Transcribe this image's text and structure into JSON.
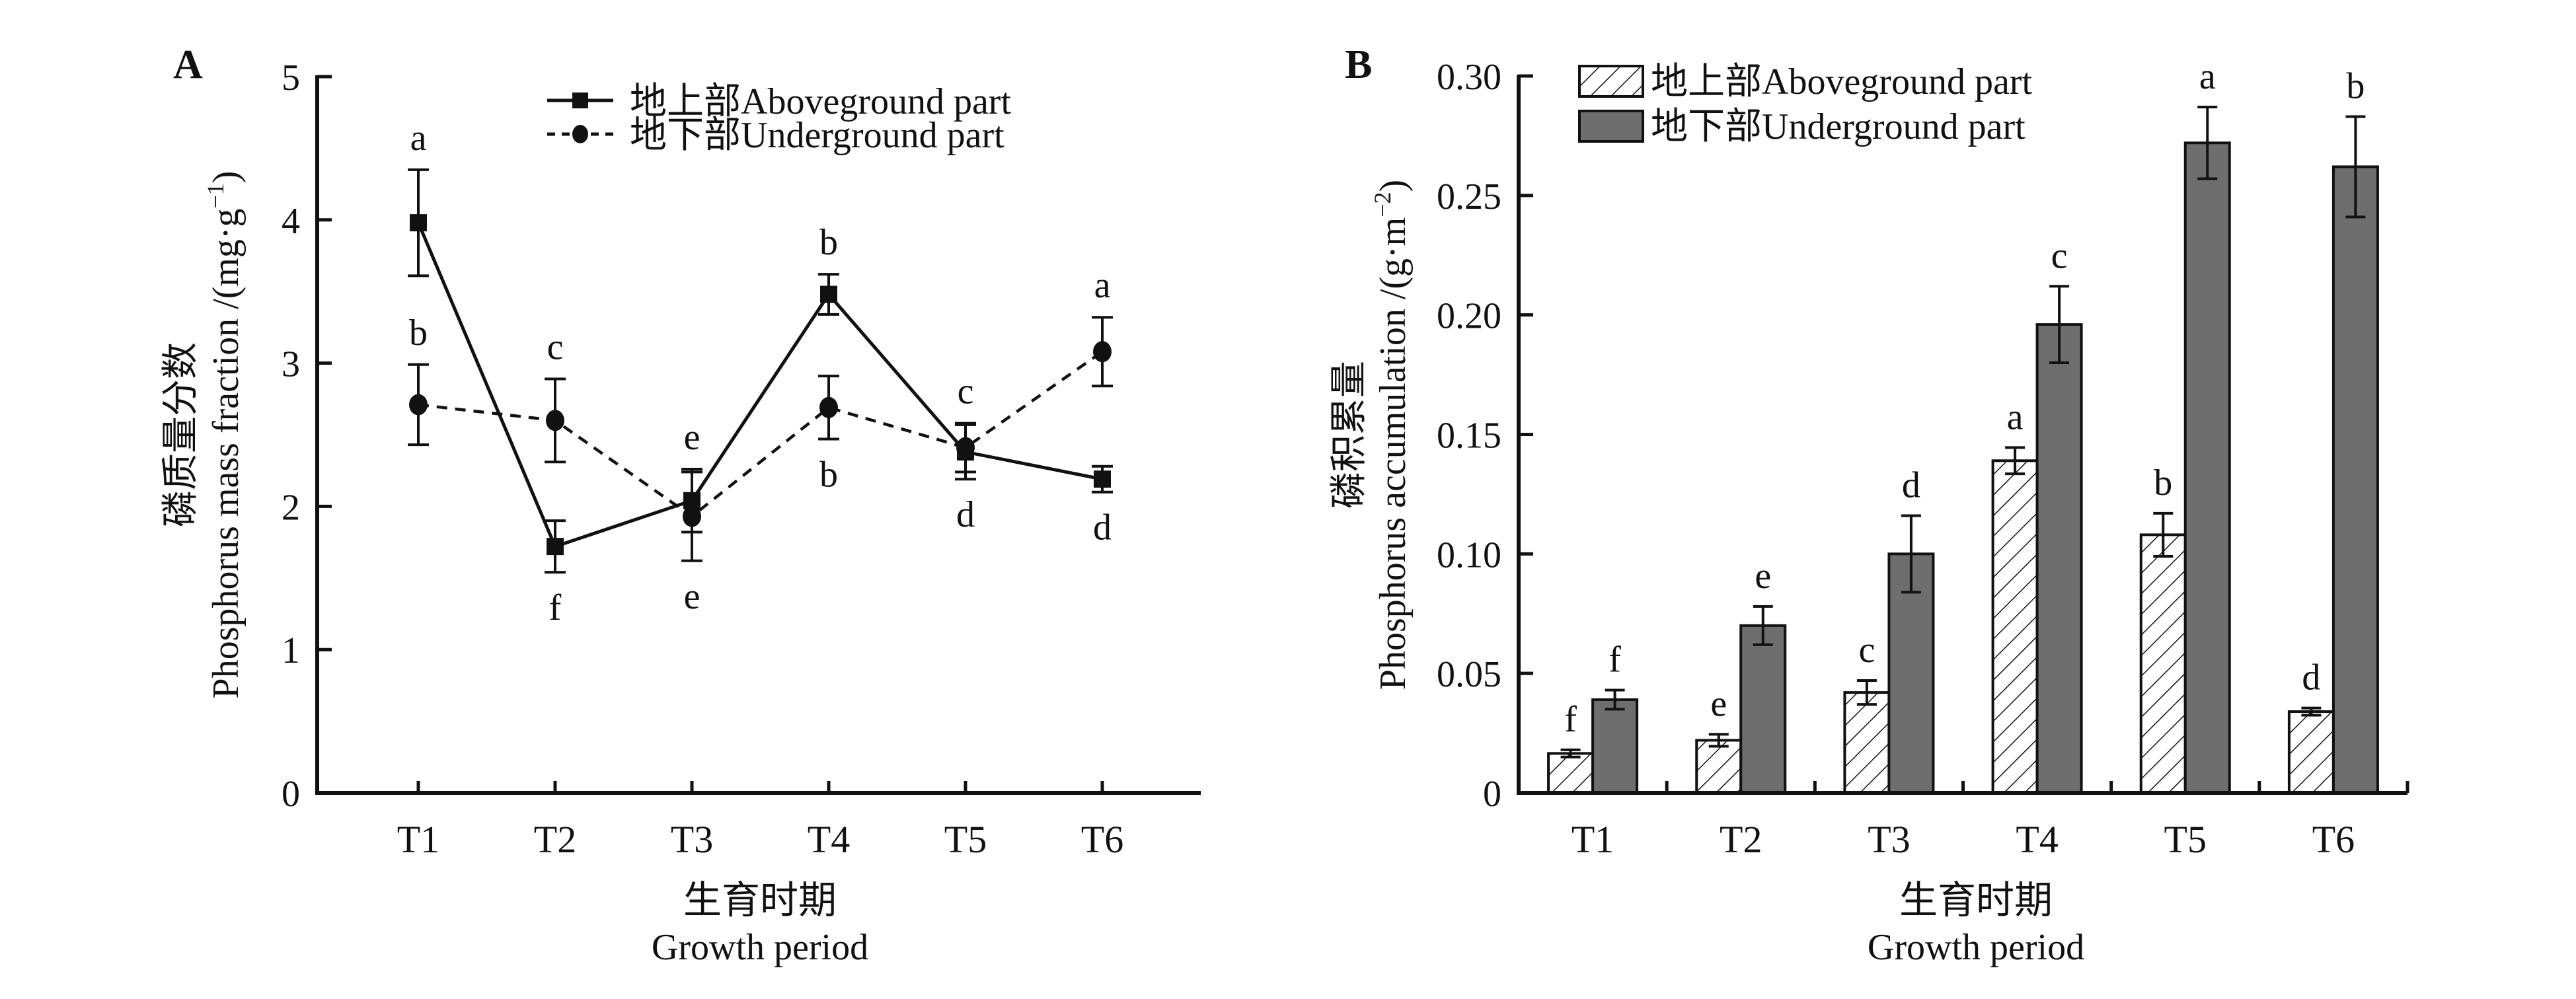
{
  "chart_data": [
    {
      "panel": "A",
      "type": "line",
      "ylabel_cn": "磷质量分数",
      "ylabel": "Phosphorus mass fraction /(mg·g",
      "ylabel_sup": "−1",
      "ylabel_close": ")",
      "xlabel_cn": "生育时期",
      "xlabel": "Growth period",
      "categories": [
        "T1",
        "T2",
        "T3",
        "T4",
        "T5",
        "T6"
      ],
      "ylim": [
        0,
        5
      ],
      "yticks": [
        "0",
        "1",
        "2",
        "3",
        "4",
        "5"
      ],
      "legend_position": "top-right",
      "series": [
        {
          "name": "地上部Aboveground part",
          "style": "solid-square",
          "values": [
            3.98,
            1.72,
            2.04,
            3.48,
            2.38,
            2.19
          ],
          "errors": [
            0.37,
            0.18,
            0.22,
            0.14,
            0.19,
            0.09
          ],
          "letters": [
            "a",
            "f",
            "e",
            "b",
            "d",
            "d"
          ],
          "letter_side": [
            "above",
            "below",
            "above",
            "above",
            "below",
            "below"
          ]
        },
        {
          "name": "地下部Underground part",
          "style": "dashed-circle",
          "values": [
            2.71,
            2.6,
            1.93,
            2.69,
            2.41,
            3.08
          ],
          "errors": [
            0.28,
            0.29,
            0.31,
            0.22,
            0.17,
            0.24
          ],
          "letters": [
            "b",
            "c",
            "e",
            "b",
            "c",
            "a"
          ],
          "letter_side": [
            "above",
            "above",
            "below",
            "below",
            "above",
            "above"
          ]
        }
      ]
    },
    {
      "panel": "B",
      "type": "bar",
      "ylabel_cn": "磷积累量",
      "ylabel": "Phosphorus accumulation /(g·m",
      "ylabel_sup": "−2",
      "ylabel_close": ")",
      "xlabel_cn": "生育时期",
      "xlabel": "Growth period",
      "categories": [
        "T1",
        "T2",
        "T3",
        "T4",
        "T5",
        "T6"
      ],
      "ylim": [
        0,
        0.3
      ],
      "yticks": [
        "0",
        "0.05",
        "0.10",
        "0.15",
        "0.20",
        "0.25",
        "0.30"
      ],
      "legend_position": "top-left",
      "series": [
        {
          "name": "地上部Aboveground part",
          "style": "hatched",
          "values": [
            0.0165,
            0.022,
            0.042,
            0.139,
            0.108,
            0.034
          ],
          "errors": [
            0.0015,
            0.0025,
            0.005,
            0.0055,
            0.009,
            0.0015
          ],
          "letters": [
            "f",
            "e",
            "c",
            "a",
            "b",
            "d"
          ]
        },
        {
          "name": "地下部Underground part",
          "style": "solid",
          "values": [
            0.039,
            0.07,
            0.1,
            0.196,
            0.272,
            0.262
          ],
          "errors": [
            0.004,
            0.008,
            0.016,
            0.016,
            0.015,
            0.021
          ],
          "letters": [
            "f",
            "e",
            "d",
            "c",
            "a",
            "b"
          ]
        }
      ]
    }
  ],
  "colors": {
    "axis": "#111111",
    "underground_bar": "#6e6e6e",
    "background": "#ffffff"
  }
}
